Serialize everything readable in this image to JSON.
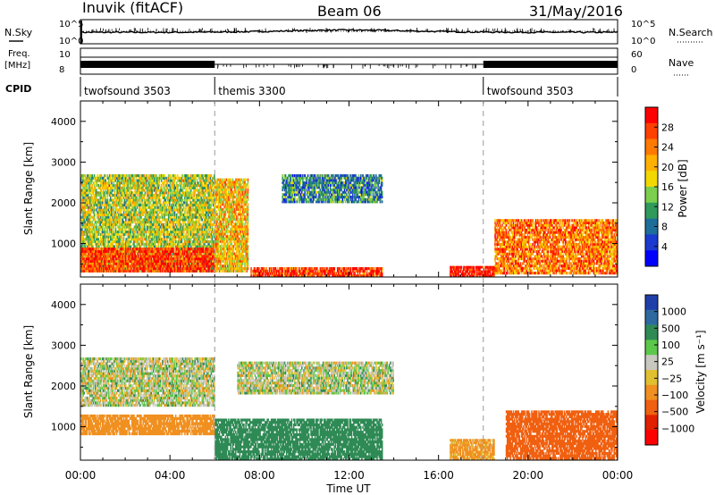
{
  "header": {
    "station": "Inuvik (fitACF)",
    "beam": "Beam 06",
    "date": "31/May/2016"
  },
  "top_panels": {
    "nsky_label": "N.Sky",
    "nsearch_label": "N.Search",
    "noise_ticks": [
      "10^5",
      "10^0"
    ],
    "freq_label_1": "Freq.",
    "freq_label_2": "[MHz]",
    "freq_ticks": [
      "10",
      "8"
    ],
    "nave_label": "Nave",
    "nave_ticks": [
      "60",
      "0"
    ],
    "cpid_label": "CPID"
  },
  "cpid_segments": [
    {
      "name": "twofsound 3503",
      "start_hour": 0
    },
    {
      "name": "themis 3300",
      "start_hour": 6
    },
    {
      "name": "twofsound 3503",
      "start_hour": 18
    }
  ],
  "axes": {
    "xlabel": "Time UT",
    "ylabel": "Slant Range [km]",
    "x_ticks": [
      "00:00",
      "04:00",
      "08:00",
      "12:00",
      "16:00",
      "20:00",
      "00:00"
    ],
    "x_range_hours": [
      0,
      24
    ],
    "y_ticks": [
      "4000",
      "3000",
      "2000",
      "1000"
    ],
    "y_range_km": [
      180,
      4500
    ]
  },
  "colorbars": {
    "power": {
      "label": "Power [dB]",
      "ticks": [
        "28",
        "24",
        "20",
        "16",
        "12",
        "8",
        "4"
      ],
      "colors": [
        "#ff0000",
        "#ff4000",
        "#ff7a00",
        "#ffb000",
        "#f2d800",
        "#7ccf4c",
        "#2f9a5a",
        "#1e6e9a",
        "#1a3ad0",
        "#0000ff"
      ]
    },
    "velocity": {
      "label": "Velocity [m s⁻¹]",
      "ticks": [
        "1000",
        "500",
        "100",
        "25",
        "−25",
        "−100",
        "−500",
        "−1000"
      ],
      "colors": [
        "#1f3fa8",
        "#2e6aa0",
        "#2f8a55",
        "#5cc84a",
        "#c8c8c0",
        "#e0c030",
        "#f09020",
        "#f06010",
        "#e02000",
        "#ff0000"
      ]
    }
  },
  "chart_data": {
    "type": "heatmap",
    "title": "Inuvik (fitACF) Beam 06 31/May/2016",
    "xlabel": "Time UT",
    "ylabel": "Slant Range [km]",
    "panels": [
      {
        "name": "Power [dB]",
        "regions": [
          {
            "t0": 0.0,
            "t1": 6.0,
            "r0": 300,
            "r1": 2700,
            "value": 14
          },
          {
            "t0": 0.0,
            "t1": 6.0,
            "r0": 300,
            "r1": 900,
            "value": 26
          },
          {
            "t0": 6.0,
            "t1": 7.5,
            "r0": 300,
            "r1": 2600,
            "value": 18
          },
          {
            "t0": 7.6,
            "t1": 13.5,
            "r0": 180,
            "r1": 420,
            "value": 26
          },
          {
            "t0": 9.0,
            "t1": 13.5,
            "r0": 2000,
            "r1": 2700,
            "value": 8
          },
          {
            "t0": 16.5,
            "t1": 18.5,
            "r0": 180,
            "r1": 450,
            "value": 28
          },
          {
            "t0": 18.5,
            "t1": 24.0,
            "r0": 250,
            "r1": 1600,
            "value": 22
          }
        ]
      },
      {
        "name": "Velocity [m s⁻¹]",
        "regions": [
          {
            "t0": 0.0,
            "t1": 6.0,
            "r0": 1500,
            "r1": 2700,
            "value": 0
          },
          {
            "t0": 0.0,
            "t1": 6.0,
            "r0": 800,
            "r1": 1300,
            "value": -200
          },
          {
            "t0": 6.0,
            "t1": 13.5,
            "r0": 180,
            "r1": 1200,
            "value": 200
          },
          {
            "t0": 7.0,
            "t1": 14.0,
            "r0": 1800,
            "r1": 2600,
            "value": 0
          },
          {
            "t0": 16.5,
            "t1": 18.5,
            "r0": 180,
            "r1": 700,
            "value": -100
          },
          {
            "t0": 19.0,
            "t1": 24.0,
            "r0": 200,
            "r1": 1400,
            "value": -500
          }
        ]
      }
    ]
  }
}
